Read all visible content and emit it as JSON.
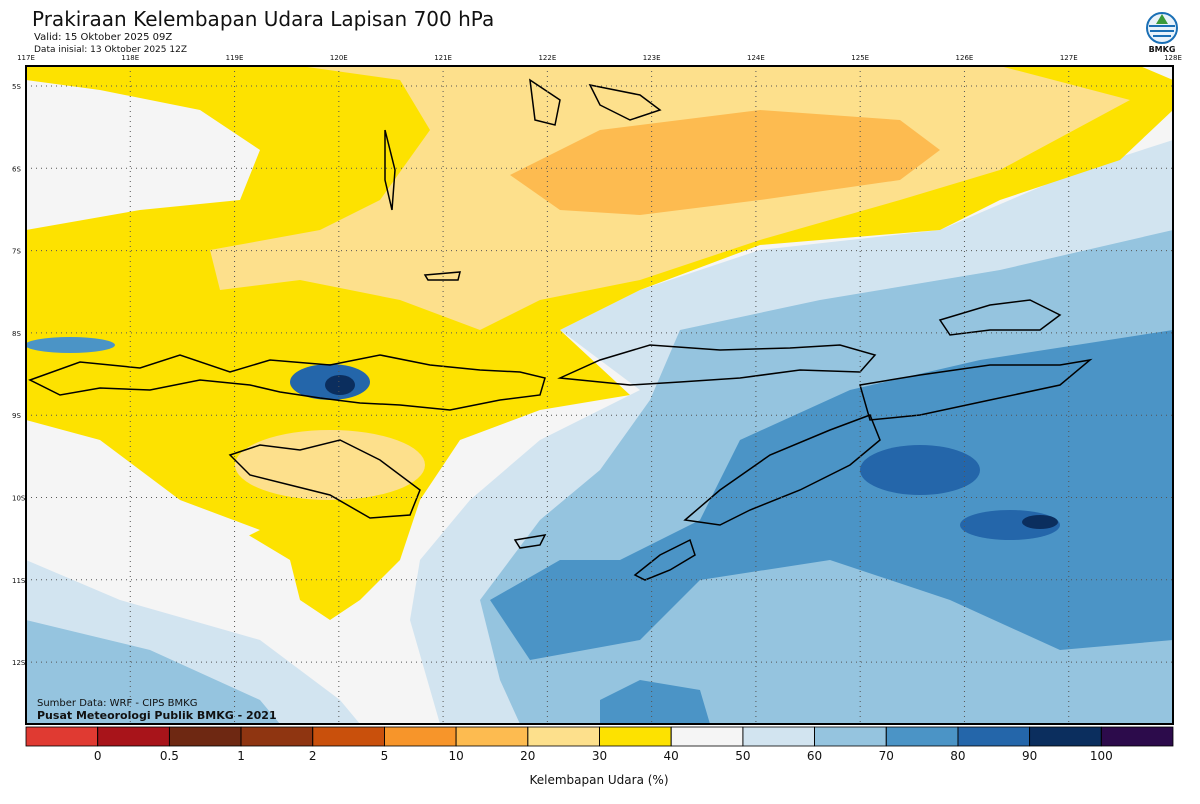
{
  "header": {
    "title": "Prakiraan Kelembapan Udara Lapisan 700 hPa",
    "valid": "Valid: 15 Oktober 2025 09Z",
    "initial": "Data inisial: 13 Oktober 2025 12Z"
  },
  "logo": "BMKG",
  "map": {
    "lon_labels": [
      "117E",
      "118E",
      "119E",
      "120E",
      "121E",
      "122E",
      "123E",
      "124E",
      "125E",
      "126E",
      "127E",
      "128E"
    ],
    "lat_labels": [
      "5S",
      "6S",
      "7S",
      "8S",
      "9S",
      "10S",
      "11S",
      "12S"
    ],
    "credits": [
      "Sumber Data: WRF - CIPS BMKG",
      "Pusat Meteorologi Publik BMKG - 2021"
    ]
  },
  "colorbar": {
    "ticks": [
      0,
      0.5,
      1,
      2,
      5,
      10,
      20,
      30,
      40,
      50,
      60,
      70,
      80,
      90,
      100
    ],
    "colors": [
      "#e03a32",
      "#a8141a",
      "#6e2812",
      "#8f3511",
      "#c9500c",
      "#f7952a",
      "#fdbb50",
      "#fde08c",
      "#fde200",
      "#f5f5f5",
      "#d2e4f0",
      "#95c4df",
      "#4b94c6",
      "#2466aa",
      "#0b2e5e",
      "#2c0b4b"
    ],
    "label": "Kelembapan Udara (%)"
  }
}
